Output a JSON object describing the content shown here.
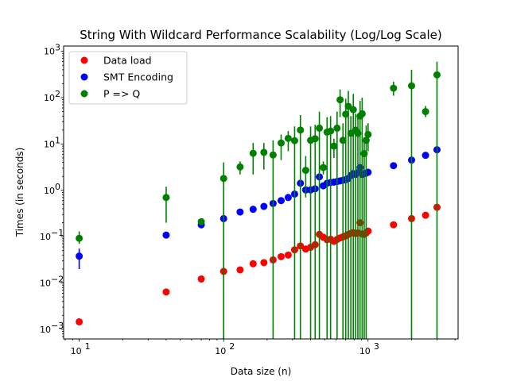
{
  "chart_data": {
    "type": "scatter",
    "title": "String With Wildcard Performance Scalability (Log/Log Scale)",
    "xlabel": "Data size (n)",
    "ylabel": "Times (in seconds)",
    "xscale": "log",
    "yscale": "log",
    "xlim": [
      7.8,
      4200
    ],
    "ylim": [
      0.00062,
      1300
    ],
    "x_ticks": [
      {
        "value": 10,
        "base": "10",
        "exp": "1"
      },
      {
        "value": 100,
        "base": "10",
        "exp": "2"
      },
      {
        "value": 1000,
        "base": "10",
        "exp": "3"
      }
    ],
    "y_ticks": [
      {
        "value": 0.001,
        "base": "10",
        "exp": "−3"
      },
      {
        "value": 0.01,
        "base": "10",
        "exp": "−2"
      },
      {
        "value": 0.1,
        "base": "10",
        "exp": "−1"
      },
      {
        "value": 1,
        "base": "10",
        "exp": "0"
      },
      {
        "value": 10,
        "base": "10",
        "exp": "1"
      },
      {
        "value": 100,
        "base": "10",
        "exp": "2"
      },
      {
        "value": 1000,
        "base": "10",
        "exp": "3"
      }
    ],
    "grid": false,
    "legend_position": "top-left",
    "series": [
      {
        "name": "Data load",
        "color": "#ff0000",
        "points": [
          {
            "x": 10,
            "y": 0.00145
          },
          {
            "x": 40,
            "y": 0.0064
          },
          {
            "x": 70,
            "y": 0.0122,
            "lo": 0.0105,
            "hi": 0.014
          },
          {
            "x": 100,
            "y": 0.0178
          },
          {
            "x": 130,
            "y": 0.0192
          },
          {
            "x": 160,
            "y": 0.026
          },
          {
            "x": 190,
            "y": 0.0275
          },
          {
            "x": 220,
            "y": 0.0315
          },
          {
            "x": 250,
            "y": 0.037
          },
          {
            "x": 280,
            "y": 0.04
          },
          {
            "x": 310,
            "y": 0.052
          },
          {
            "x": 340,
            "y": 0.063
          },
          {
            "x": 370,
            "y": 0.054
          },
          {
            "x": 400,
            "y": 0.059
          },
          {
            "x": 430,
            "y": 0.067
          },
          {
            "x": 460,
            "y": 0.112
          },
          {
            "x": 490,
            "y": 0.097
          },
          {
            "x": 520,
            "y": 0.086
          },
          {
            "x": 550,
            "y": 0.088
          },
          {
            "x": 580,
            "y": 0.079
          },
          {
            "x": 610,
            "y": 0.087
          },
          {
            "x": 640,
            "y": 0.094
          },
          {
            "x": 670,
            "y": 0.099
          },
          {
            "x": 700,
            "y": 0.104
          },
          {
            "x": 730,
            "y": 0.112
          },
          {
            "x": 760,
            "y": 0.118
          },
          {
            "x": 790,
            "y": 0.122
          },
          {
            "x": 820,
            "y": 0.116
          },
          {
            "x": 850,
            "y": 0.12,
            "lo": 0.1,
            "hi": 0.145
          },
          {
            "x": 880,
            "y": 0.2,
            "lo": 0.17,
            "hi": 0.24
          },
          {
            "x": 910,
            "y": 0.115
          },
          {
            "x": 940,
            "y": 0.112
          },
          {
            "x": 970,
            "y": 0.12
          },
          {
            "x": 1000,
            "y": 0.132
          },
          {
            "x": 1500,
            "y": 0.18
          },
          {
            "x": 2000,
            "y": 0.245
          },
          {
            "x": 2500,
            "y": 0.29
          },
          {
            "x": 3000,
            "y": 0.43
          }
        ]
      },
      {
        "name": "SMT Encoding",
        "color": "#0000ff",
        "points": [
          {
            "x": 10,
            "y": 0.038,
            "lo": 0.02,
            "hi": 0.055
          },
          {
            "x": 40,
            "y": 0.108
          },
          {
            "x": 70,
            "y": 0.18
          },
          {
            "x": 100,
            "y": 0.245
          },
          {
            "x": 130,
            "y": 0.34
          },
          {
            "x": 160,
            "y": 0.39
          },
          {
            "x": 190,
            "y": 0.45
          },
          {
            "x": 220,
            "y": 0.52
          },
          {
            "x": 250,
            "y": 0.6
          },
          {
            "x": 280,
            "y": 0.7
          },
          {
            "x": 310,
            "y": 0.83
          },
          {
            "x": 340,
            "y": 1.42
          },
          {
            "x": 370,
            "y": 1.02
          },
          {
            "x": 400,
            "y": 1.02
          },
          {
            "x": 430,
            "y": 1.08
          },
          {
            "x": 460,
            "y": 1.95
          },
          {
            "x": 490,
            "y": 1.25
          },
          {
            "x": 520,
            "y": 1.42
          },
          {
            "x": 550,
            "y": 1.48
          },
          {
            "x": 580,
            "y": 1.5
          },
          {
            "x": 610,
            "y": 1.55
          },
          {
            "x": 640,
            "y": 1.6
          },
          {
            "x": 670,
            "y": 1.65
          },
          {
            "x": 700,
            "y": 1.7
          },
          {
            "x": 730,
            "y": 1.8
          },
          {
            "x": 760,
            "y": 2.1
          },
          {
            "x": 790,
            "y": 2.3
          },
          {
            "x": 820,
            "y": 2.2
          },
          {
            "x": 850,
            "y": 2.4
          },
          {
            "x": 880,
            "y": 3.1
          },
          {
            "x": 910,
            "y": 2.2
          },
          {
            "x": 940,
            "y": 2.3
          },
          {
            "x": 970,
            "y": 2.35
          },
          {
            "x": 1000,
            "y": 2.45
          },
          {
            "x": 1500,
            "y": 3.4
          },
          {
            "x": 2000,
            "y": 4.5
          },
          {
            "x": 2500,
            "y": 5.7
          },
          {
            "x": 3000,
            "y": 7.5
          }
        ]
      },
      {
        "name": "P => Q",
        "color": "#008000",
        "points": [
          {
            "x": 10,
            "y": 0.092,
            "lo": 0.07,
            "hi": 0.13
          },
          {
            "x": 40,
            "y": 0.7,
            "lo": 0.2,
            "hi": 1.2
          },
          {
            "x": 70,
            "y": 0.21,
            "lo": 0.18,
            "hi": 0.25
          },
          {
            "x": 100,
            "y": 1.8,
            "lo": 0.00062,
            "hi": 4.0
          },
          {
            "x": 130,
            "y": 3.2,
            "lo": 2.2,
            "hi": 4.2
          },
          {
            "x": 160,
            "y": 6.3,
            "lo": 2.2,
            "hi": 10.5
          },
          {
            "x": 190,
            "y": 6.6,
            "lo": 2.8,
            "hi": 10.5
          },
          {
            "x": 220,
            "y": 5.8,
            "lo": 0.00062,
            "hi": 12
          },
          {
            "x": 250,
            "y": 10.5,
            "lo": 4.5,
            "hi": 16
          },
          {
            "x": 280,
            "y": 13.2,
            "lo": 7,
            "hi": 19
          },
          {
            "x": 310,
            "y": 11.8,
            "lo": 0.00062,
            "hi": 24
          },
          {
            "x": 340,
            "y": 20,
            "lo": 0.00062,
            "hi": 42
          },
          {
            "x": 370,
            "y": 2.7,
            "lo": 0.7,
            "hi": 5.5
          },
          {
            "x": 400,
            "y": 12,
            "lo": 0.00062,
            "hi": 24
          },
          {
            "x": 430,
            "y": 13,
            "lo": 0.00062,
            "hi": 26
          },
          {
            "x": 460,
            "y": 22,
            "lo": 0.00062,
            "hi": 50
          },
          {
            "x": 490,
            "y": 3.1,
            "lo": 2.2,
            "hi": 4.2
          },
          {
            "x": 520,
            "y": 18,
            "lo": 0.00062,
            "hi": 38
          },
          {
            "x": 550,
            "y": 19,
            "lo": 0.00062,
            "hi": 40
          },
          {
            "x": 580,
            "y": 9,
            "lo": 5,
            "hi": 13
          },
          {
            "x": 610,
            "y": 22,
            "lo": 0.00062,
            "hi": 50
          },
          {
            "x": 640,
            "y": 90,
            "lo": 38,
            "hi": 150
          },
          {
            "x": 670,
            "y": 12,
            "lo": 0.00062,
            "hi": 28
          },
          {
            "x": 700,
            "y": 44,
            "lo": 0.00062,
            "hi": 95
          },
          {
            "x": 730,
            "y": 65,
            "lo": 0.00062,
            "hi": 140
          },
          {
            "x": 760,
            "y": 17,
            "lo": 0.00062,
            "hi": 40
          },
          {
            "x": 790,
            "y": 55,
            "lo": 0.00062,
            "hi": 120
          },
          {
            "x": 820,
            "y": 20,
            "lo": 0.00062,
            "hi": 45
          },
          {
            "x": 850,
            "y": 17,
            "lo": 0.00062,
            "hi": 38
          },
          {
            "x": 880,
            "y": 40,
            "lo": 0.00062,
            "hi": 85
          },
          {
            "x": 910,
            "y": 45,
            "lo": 0.00062,
            "hi": 100
          },
          {
            "x": 940,
            "y": 6.2,
            "lo": 0.00062,
            "hi": 14
          },
          {
            "x": 970,
            "y": 12,
            "lo": 0.00062,
            "hi": 25
          },
          {
            "x": 1000,
            "y": 16,
            "lo": 7,
            "hi": 28
          },
          {
            "x": 1500,
            "y": 160,
            "lo": 110,
            "hi": 220
          },
          {
            "x": 2000,
            "y": 180,
            "lo": 0.00062,
            "hi": 400
          },
          {
            "x": 2500,
            "y": 50,
            "lo": 38,
            "hi": 66
          },
          {
            "x": 3000,
            "y": 310,
            "lo": 0.00062,
            "hi": 600
          }
        ]
      }
    ]
  }
}
